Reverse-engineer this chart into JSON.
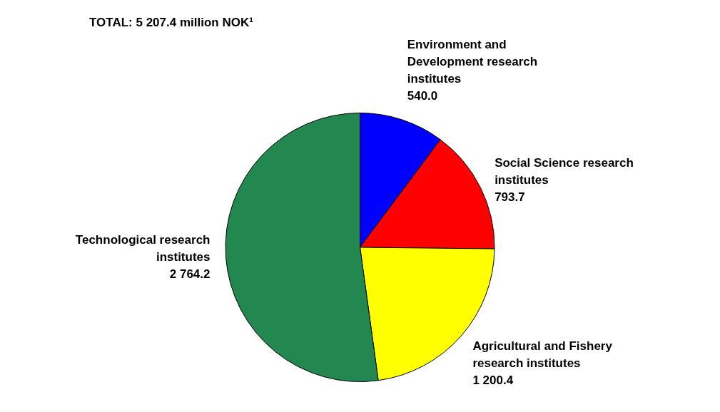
{
  "chart_data": {
    "type": "pie",
    "title": "TOTAL: 5 207.4 million NOK¹",
    "categories": [
      "Environment and Development research institutes",
      "Social Science research institutes",
      "Agricultural and Fishery research institutes",
      "Technological research institutes"
    ],
    "values": [
      540.0,
      793.7,
      1200.4,
      2764.2
    ],
    "value_labels": [
      "540.0",
      "793.7",
      "1 200.4",
      "2 764.2"
    ],
    "colors": [
      "#0000ff",
      "#ff0000",
      "#ffff00",
      "#22884f"
    ],
    "legend": false
  }
}
